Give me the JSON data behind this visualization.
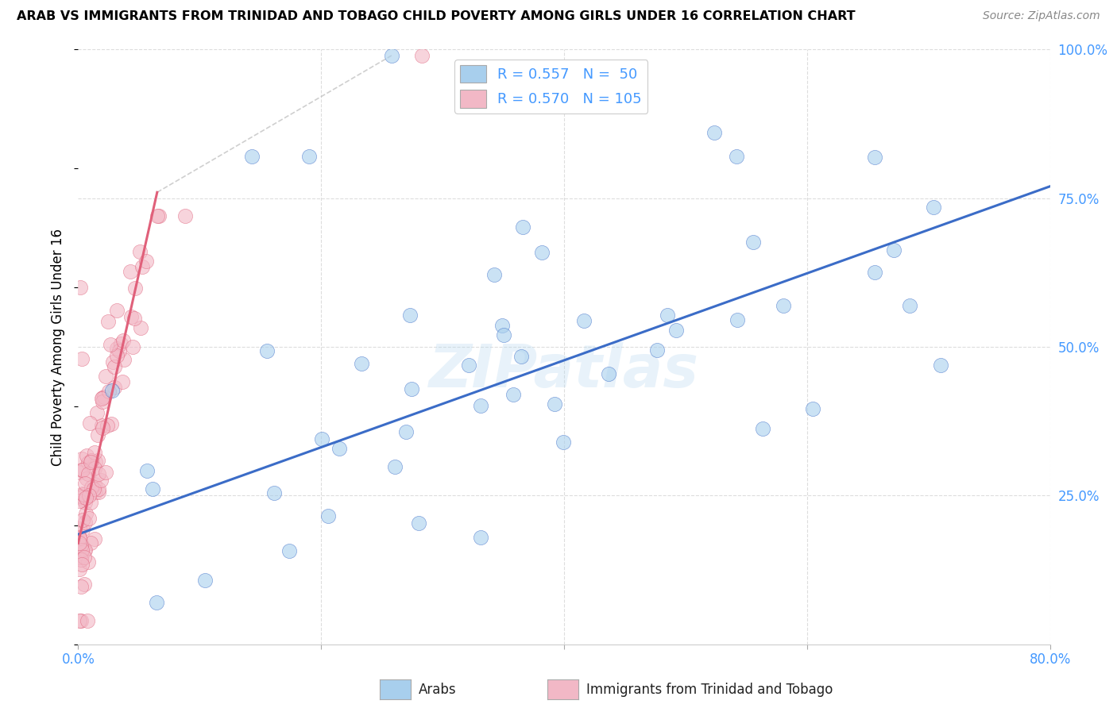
{
  "title": "ARAB VS IMMIGRANTS FROM TRINIDAD AND TOBAGO CHILD POVERTY AMONG GIRLS UNDER 16 CORRELATION CHART",
  "source": "Source: ZipAtlas.com",
  "ylabel": "Child Poverty Among Girls Under 16",
  "xlim": [
    0.0,
    0.8
  ],
  "ylim": [
    0.0,
    1.0
  ],
  "blue_color": "#A8CFED",
  "pink_color": "#F2B8C6",
  "blue_line_color": "#3B6CC7",
  "pink_line_color": "#E0607A",
  "blue_R": 0.557,
  "blue_N": 50,
  "pink_R": 0.57,
  "pink_N": 105,
  "watermark": "ZIPatlas",
  "legend_labels": [
    "Arabs",
    "Immigrants from Trinidad and Tobago"
  ],
  "blue_line_x0": 0.0,
  "blue_line_y0": 0.185,
  "blue_line_x1": 0.8,
  "blue_line_y1": 0.77,
  "pink_line_x0": 0.0,
  "pink_line_y0": 0.17,
  "pink_line_x1": 0.065,
  "pink_line_y1": 0.76
}
